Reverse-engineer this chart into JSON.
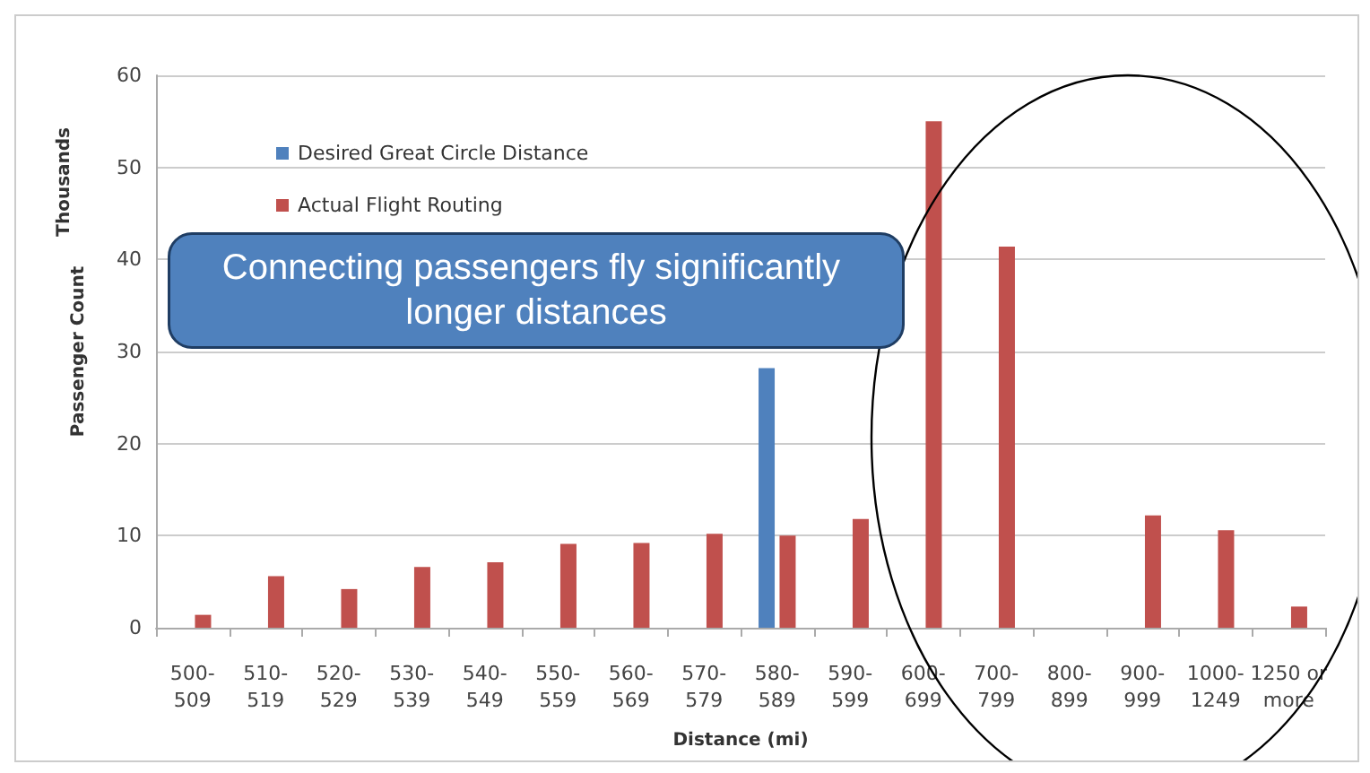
{
  "chart_data": {
    "type": "bar",
    "xlabel": "Distance (mi)",
    "ylabel": "Passenger Count",
    "annotations": [
      "Thousands",
      "Connecting passengers fly significantly longer distances"
    ],
    "categories": [
      "500-\n509",
      "510-\n519",
      "520-\n529",
      "530-\n539",
      "540-\n549",
      "550-\n559",
      "560-\n569",
      "570-\n579",
      "580-\n589",
      "590-\n599",
      "600-\n699",
      "700-\n799",
      "800-\n899",
      "900-\n999",
      "1000-\n1249",
      "1250 or\nmore"
    ],
    "series": [
      {
        "name": "Desired Great Circle Distance",
        "color": "#4f81bd",
        "values": [
          null,
          null,
          null,
          null,
          null,
          null,
          null,
          null,
          28.2,
          null,
          null,
          null,
          null,
          null,
          null,
          null
        ]
      },
      {
        "name": "Actual Flight Routing",
        "color": "#c0504d",
        "values": [
          1.4,
          5.6,
          4.2,
          6.6,
          7.1,
          9.1,
          9.2,
          10.2,
          10,
          11.8,
          55,
          41.4,
          null,
          12.2,
          10.6,
          2.3
        ]
      }
    ],
    "ylim": [
      0,
      60
    ],
    "yticks": [
      0,
      10,
      20,
      30,
      40,
      50,
      60
    ],
    "grid": "y",
    "legend": "top left"
  }
}
